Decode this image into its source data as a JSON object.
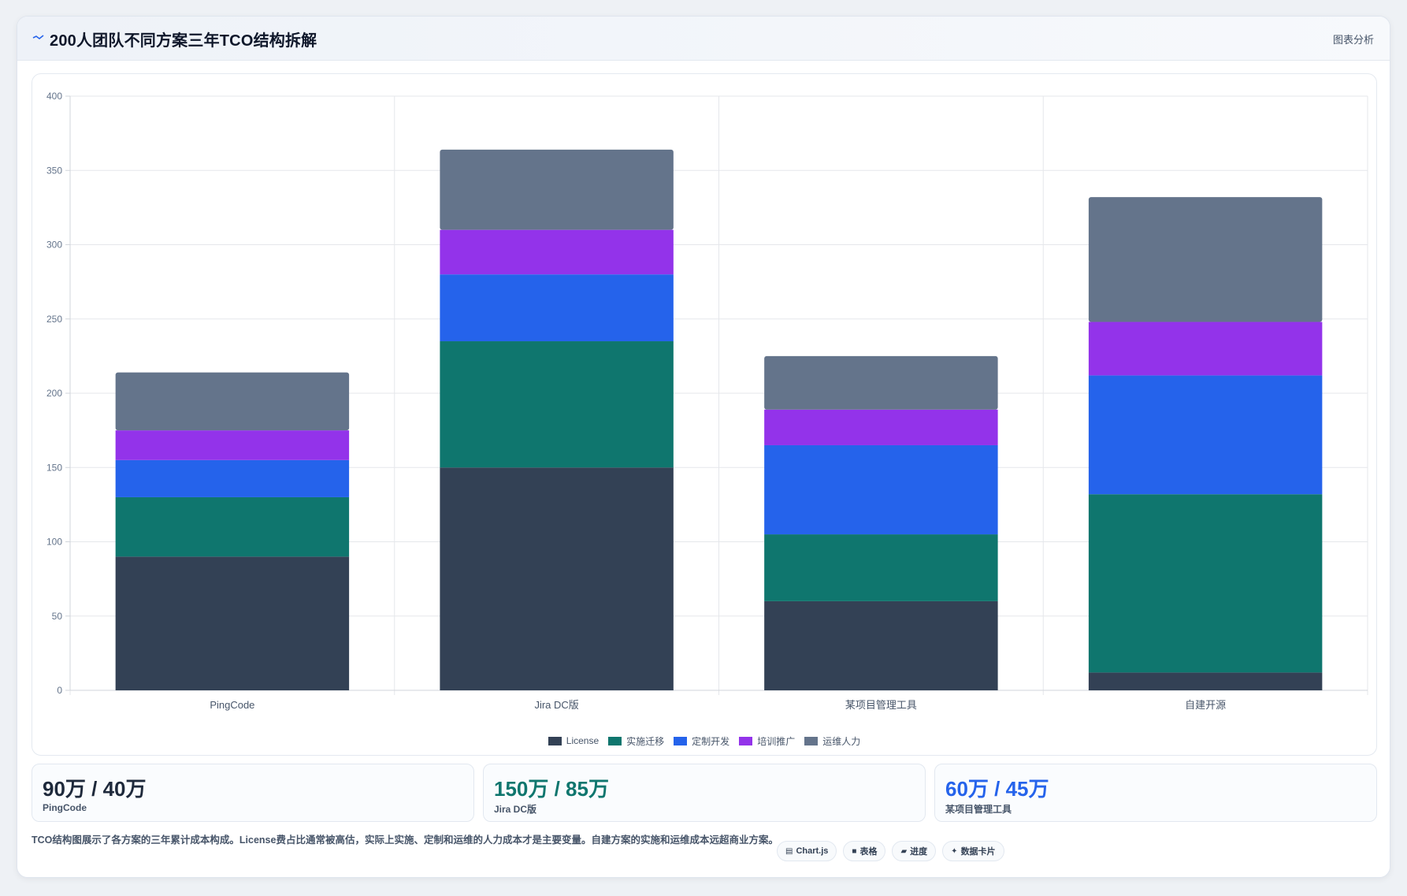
{
  "header": {
    "title": "200人团队不同方案三年TCO结构拆解",
    "action_label": "图表分析",
    "icon": "trend-line-icon"
  },
  "chart_data": {
    "type": "bar",
    "stacked": true,
    "categories": [
      "PingCode",
      "Jira DC版",
      "某项目管理工具",
      "自建开源"
    ],
    "series": [
      {
        "name": "License",
        "color": "#334155",
        "values": [
          90,
          150,
          60,
          12
        ]
      },
      {
        "name": "实施迁移",
        "color": "#0f766e",
        "values": [
          40,
          85,
          45,
          120
        ]
      },
      {
        "name": "定制开发",
        "color": "#2563eb",
        "values": [
          25,
          45,
          60,
          80
        ]
      },
      {
        "name": "培训推广",
        "color": "#9333ea",
        "values": [
          20,
          30,
          24,
          36
        ]
      },
      {
        "name": "运维人力",
        "color": "#64748b",
        "values": [
          39,
          54,
          36,
          84
        ]
      }
    ],
    "ylim": [
      0,
      400
    ],
    "yticks": [
      0,
      50,
      100,
      150,
      200,
      250,
      300,
      350,
      400
    ],
    "grid": true,
    "legend_position": "bottom",
    "title": "",
    "xlabel": "",
    "ylabel": ""
  },
  "stats": [
    {
      "value": "90万 / 40万",
      "label": "PingCode",
      "color": "#1e293b"
    },
    {
      "value": "150万 / 85万",
      "label": "Jira DC版",
      "color": "#0f766e"
    },
    {
      "value": "60万 / 45万",
      "label": "某项目管理工具",
      "color": "#2563eb"
    }
  ],
  "footer": {
    "description": "TCO结构图展示了各方案的三年累计成本构成。License费占比通常被高估，实际上实施、定制和运维的人力成本才是主要变量。自建方案的实施和运维成本远超商业方案。"
  },
  "tags": [
    {
      "icon": "chart-icon",
      "glyph": "▤",
      "label": "Chart.js"
    },
    {
      "icon": "table-icon",
      "glyph": "■",
      "label": "表格"
    },
    {
      "icon": "progress-icon",
      "glyph": "▰",
      "label": "进度"
    },
    {
      "icon": "data-card-icon",
      "glyph": "✦",
      "label": "数据卡片"
    }
  ]
}
